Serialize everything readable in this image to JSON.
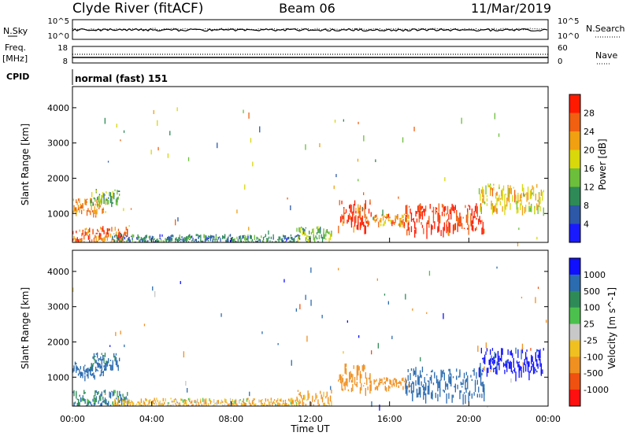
{
  "header": {
    "station": "Clyde River (fitACF)",
    "beam": "Beam 06",
    "date": "11/Mar/2019"
  },
  "panels": {
    "nsky_label": "N.Sky",
    "nsky_ticks": [
      "10^5",
      "10^0"
    ],
    "nsearch_label": "N.Search",
    "nsearch_ticks": [
      "10^5",
      "10^0"
    ],
    "freq_label": "Freq.",
    "freq_unit": "[MHz]",
    "freq_ticks": [
      "18",
      "8"
    ],
    "nave_label": "Nave",
    "nave_ticks": [
      "60",
      "0"
    ],
    "cpid_label": "CPID",
    "cpid_value": "normal (fast) 151"
  },
  "chart_data": [
    {
      "type": "heatmap",
      "title": "",
      "xlabel": "Time UT",
      "ylabel": "Slant Range [km]",
      "x_ticks": [
        "00:00",
        "04:00",
        "08:00",
        "12:00",
        "16:00",
        "20:00",
        "00:00"
      ],
      "x_range_hours": [
        0,
        24
      ],
      "y_ticks": [
        1000,
        2000,
        3000,
        4000
      ],
      "ylim": [
        180,
        4600
      ],
      "grid": false,
      "colorbar": {
        "label": "Power [dB]",
        "ticks": [
          "4",
          "8",
          "12",
          "16",
          "20",
          "24",
          "28"
        ],
        "range": [
          0,
          30
        ],
        "colors": [
          "#1a1aff",
          "#2d58a8",
          "#2e8b57",
          "#6cbf3a",
          "#d8d80a",
          "#f0a010",
          "#f06010",
          "#ff1a00"
        ]
      },
      "regions": [
        {
          "t": [
            0.0,
            1.7
          ],
          "range_km": [
            1050,
            1450
          ],
          "power_db": 22
        },
        {
          "t": [
            0.9,
            2.4
          ],
          "range_km": [
            1300,
            1700
          ],
          "power_db": 12
        },
        {
          "t": [
            0.0,
            2.8
          ],
          "range_km": [
            200,
            650
          ],
          "power_db": 24
        },
        {
          "t": [
            2.0,
            11.5
          ],
          "range_km": [
            180,
            420
          ],
          "power_db": 8
        },
        {
          "t": [
            11.3,
            13.1
          ],
          "range_km": [
            180,
            650
          ],
          "power_db": 12
        },
        {
          "t": [
            13.4,
            15.1
          ],
          "range_km": [
            650,
            1400
          ],
          "power_db": 26
        },
        {
          "t": [
            15.2,
            17.0
          ],
          "range_km": [
            700,
            1000
          ],
          "power_db": 22
        },
        {
          "t": [
            16.8,
            20.8
          ],
          "range_km": [
            500,
            1300
          ],
          "power_db": 28
        },
        {
          "t": [
            20.5,
            23.8
          ],
          "range_km": [
            1150,
            1850
          ],
          "power_db": 18
        }
      ]
    },
    {
      "type": "heatmap",
      "title": "",
      "xlabel": "Time UT",
      "ylabel": "Slant Range [km]",
      "x_ticks": [
        "00:00",
        "04:00",
        "08:00",
        "12:00",
        "16:00",
        "20:00",
        "00:00"
      ],
      "x_range_hours": [
        0,
        24
      ],
      "y_ticks": [
        1000,
        2000,
        3000,
        4000
      ],
      "ylim": [
        180,
        4600
      ],
      "grid": false,
      "colorbar": {
        "label": "Velocity [m s^-1]",
        "ticks": [
          "1000",
          "500",
          "100",
          "25",
          "-25",
          "-100",
          "-500",
          "-1000"
        ],
        "colors": [
          "#1010ff",
          "#2b6bb0",
          "#2e8b57",
          "#4cc04c",
          "#c8c8c8",
          "#f0c020",
          "#f09020",
          "#f05010",
          "#ff1010"
        ]
      },
      "regions": [
        {
          "t": [
            0.0,
            1.7
          ],
          "range_km": [
            1050,
            1450
          ],
          "velocity_ms": 200
        },
        {
          "t": [
            0.9,
            2.4
          ],
          "range_km": [
            1300,
            1700
          ],
          "velocity_ms": 150
        },
        {
          "t": [
            0.0,
            2.8
          ],
          "range_km": [
            200,
            650
          ],
          "velocity_ms": 100
        },
        {
          "t": [
            2.0,
            11.5
          ],
          "range_km": [
            180,
            420
          ],
          "velocity_ms": -80
        },
        {
          "t": [
            11.3,
            13.1
          ],
          "range_km": [
            180,
            650
          ],
          "velocity_ms": -150
        },
        {
          "t": [
            13.4,
            15.1
          ],
          "range_km": [
            650,
            1400
          ],
          "velocity_ms": -300
        },
        {
          "t": [
            15.2,
            17.0
          ],
          "range_km": [
            700,
            1000
          ],
          "velocity_ms": -200
        },
        {
          "t": [
            16.8,
            20.8
          ],
          "range_km": [
            500,
            1300
          ],
          "velocity_ms": 300
        },
        {
          "t": [
            20.5,
            23.8
          ],
          "range_km": [
            1150,
            1850
          ],
          "velocity_ms": 900
        }
      ]
    }
  ]
}
